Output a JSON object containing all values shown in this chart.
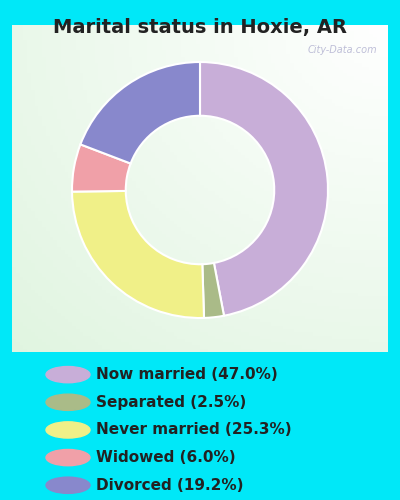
{
  "title": "Marital status in Hoxie, AR",
  "slices": [
    {
      "label": "Now married (47.0%)",
      "value": 47.0,
      "color": "#c8aed8"
    },
    {
      "label": "Separated (2.5%)",
      "value": 2.5,
      "color": "#aabb88"
    },
    {
      "label": "Never married (25.3%)",
      "value": 25.3,
      "color": "#f0f088"
    },
    {
      "label": "Widowed (6.0%)",
      "value": 6.0,
      "color": "#f0a0a8"
    },
    {
      "label": "Divorced (19.2%)",
      "value": 19.2,
      "color": "#8888cc"
    }
  ],
  "background_color": "#00e8f8",
  "title_color": "#222222",
  "title_fontsize": 14,
  "legend_fontsize": 11,
  "watermark": "City-Data.com",
  "donut_width": 0.42,
  "start_angle": 90
}
